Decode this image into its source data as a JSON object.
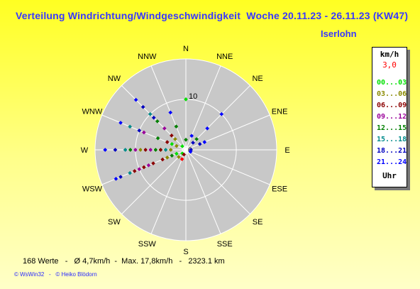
{
  "header": {
    "title": "Verteilung Windrichtung/Windgeschwindigkeit  Woche 20.11.23 - 26.11.23 (KW47)",
    "station": "Iserlohn"
  },
  "legend": {
    "title": "km/h",
    "value": "3,0",
    "unit": "Uhr",
    "items": [
      {
        "label": "00...03",
        "color": "#00e000"
      },
      {
        "label": "03...06",
        "color": "#8a8a00"
      },
      {
        "label": "06...09",
        "color": "#8b0000"
      },
      {
        "label": "09...12",
        "color": "#9a009a"
      },
      {
        "label": "12...15",
        "color": "#008000"
      },
      {
        "label": "15...18",
        "color": "#008b8b"
      },
      {
        "label": "18...21",
        "color": "#0000c0"
      },
      {
        "label": "21...24",
        "color": "#0000ff"
      }
    ]
  },
  "footer": {
    "stats": "168 Werte   -   Ø 4,7km/h  -  Max. 17,8km/h   -   2323.1 km",
    "credits": "© WsWin32   -   © Heiko Blödorn"
  },
  "colors": {
    "background": "#ffff22",
    "plot": "#c8c8c8",
    "title": "#3838ff"
  },
  "chart_data": {
    "type": "scatter",
    "projection": "polar",
    "directions": [
      "N",
      "NNE",
      "NE",
      "ENE",
      "E",
      "ESE",
      "SE",
      "SSE",
      "S",
      "SSW",
      "SW",
      "WSW",
      "W",
      "WNW",
      "NW",
      "NNW"
    ],
    "radial_ticks": [
      "10",
      "0"
    ],
    "r_max": 18,
    "series": [
      {
        "color": "#00e000",
        "points": [
          [
            0,
            10
          ],
          [
            247.5,
            2
          ],
          [
            292.5,
            3
          ],
          [
            315,
            1
          ],
          [
            225,
            1
          ],
          [
            270,
            5
          ]
        ]
      },
      {
        "color": "#8a8a00",
        "points": [
          [
            270,
            3
          ],
          [
            292.5,
            2
          ],
          [
            247.5,
            4
          ],
          [
            315,
            3
          ],
          [
            270,
            9
          ],
          [
            225,
            2
          ]
        ]
      },
      {
        "color": "#8b0000",
        "points": [
          [
            247.5,
            5
          ],
          [
            247.5,
            7
          ],
          [
            247.5,
            9
          ],
          [
            270,
            5
          ],
          [
            270,
            8
          ],
          [
            292.5,
            4
          ],
          [
            315,
            4
          ],
          [
            247.5,
            11
          ],
          [
            202.5,
            1
          ]
        ]
      },
      {
        "color": "#9a009a",
        "points": [
          [
            292.5,
            9
          ],
          [
            270,
            7
          ],
          [
            247.5,
            8
          ],
          [
            315,
            6
          ],
          [
            270,
            10
          ],
          [
            247.5,
            10
          ]
        ]
      },
      {
        "color": "#008000",
        "points": [
          [
            315,
            8
          ],
          [
            292.5,
            6
          ],
          [
            270,
            6
          ],
          [
            247.5,
            3
          ],
          [
            0,
            2
          ],
          [
            45,
            3
          ],
          [
            270,
            11
          ],
          [
            337.5,
            5
          ]
        ]
      },
      {
        "color": "#008b8b",
        "points": [
          [
            292.5,
            12
          ],
          [
            270,
            12
          ],
          [
            247.5,
            12
          ],
          [
            315,
            10
          ],
          [
            270,
            4
          ]
        ]
      },
      {
        "color": "#0000c0",
        "points": [
          [
            315,
            12
          ],
          [
            270,
            14
          ],
          [
            247.5,
            14
          ],
          [
            292.5,
            10
          ],
          [
            315,
            9
          ],
          [
            67.5,
            3
          ],
          [
            45,
            2
          ],
          [
            90,
            1
          ]
        ]
      },
      {
        "color": "#0000ff",
        "points": [
          [
            315,
            14
          ],
          [
            270,
            16
          ],
          [
            247.5,
            15
          ],
          [
            292.5,
            14
          ],
          [
            45,
            10
          ],
          [
            45,
            6
          ],
          [
            337.5,
            8
          ],
          [
            67.5,
            4
          ],
          [
            112.5,
            1
          ],
          [
            22.5,
            3
          ]
        ]
      },
      {
        "color": "#ff0000",
        "points": [
          [
            202.5,
            2
          ]
        ]
      }
    ]
  }
}
